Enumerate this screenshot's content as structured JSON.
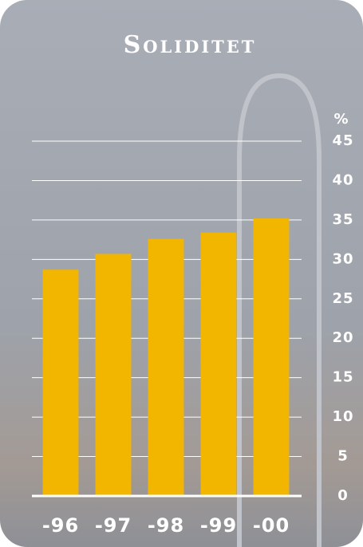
{
  "chart_data": {
    "type": "bar",
    "title": "Soliditet",
    "y_label": "%",
    "categories": [
      "-96",
      "-97",
      "-98",
      "-99",
      "-00"
    ],
    "values": [
      28.7,
      30.7,
      32.6,
      33.4,
      35.2
    ],
    "color": "#f2b600",
    "ylim": [
      0,
      45
    ],
    "yticks": [
      0,
      5,
      10,
      15,
      20,
      25,
      30,
      35,
      40,
      45
    ],
    "grid": true
  }
}
